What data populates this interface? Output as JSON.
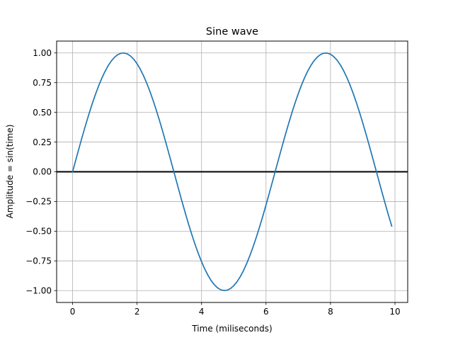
{
  "chart_data": {
    "type": "line",
    "title": "Sine wave",
    "xlabel": "Time (miliseconds)",
    "ylabel": "Amplitude = sin(time)",
    "xlim": [
      -0.495,
      10.395
    ],
    "ylim": [
      -1.1,
      1.1
    ],
    "grid": true,
    "legend": "none",
    "x_ticks": [
      0,
      2,
      4,
      6,
      8,
      10
    ],
    "x_tick_labels": [
      "0",
      "2",
      "4",
      "6",
      "8",
      "10"
    ],
    "y_ticks": [
      -1.0,
      -0.75,
      -0.5,
      -0.25,
      0.0,
      0.25,
      0.5,
      0.75,
      1.0
    ],
    "y_tick_labels": [
      "−1.00",
      "−0.75",
      "−0.50",
      "−0.25",
      "0.00",
      "0.25",
      "0.50",
      "0.75",
      "1.00"
    ],
    "series": [
      {
        "color": "#1f77b4",
        "x": [
          0.0,
          0.1,
          0.2,
          0.3,
          0.4,
          0.5,
          0.6,
          0.7,
          0.8,
          0.9,
          1.0,
          1.1,
          1.2,
          1.3,
          1.4,
          1.5,
          1.6,
          1.7,
          1.8,
          1.9,
          2.0,
          2.1,
          2.2,
          2.3,
          2.4,
          2.5,
          2.6,
          2.7,
          2.8,
          2.9,
          3.0,
          3.1,
          3.2,
          3.3,
          3.4,
          3.5,
          3.6,
          3.7,
          3.8,
          3.9,
          4.0,
          4.1,
          4.2,
          4.3,
          4.4,
          4.5,
          4.6,
          4.7,
          4.8,
          4.9,
          5.0,
          5.1,
          5.2,
          5.3,
          5.4,
          5.5,
          5.6,
          5.7,
          5.8,
          5.9,
          6.0,
          6.1,
          6.2,
          6.3,
          6.4,
          6.5,
          6.6,
          6.7,
          6.8,
          6.9,
          7.0,
          7.1,
          7.2,
          7.3,
          7.4,
          7.5,
          7.6,
          7.7,
          7.8,
          7.9,
          8.0,
          8.1,
          8.2,
          8.3,
          8.4,
          8.5,
          8.6,
          8.7,
          8.8,
          8.9,
          9.0,
          9.1,
          9.2,
          9.3,
          9.4,
          9.5,
          9.6,
          9.7,
          9.8,
          9.9
        ],
        "y": [
          0.0,
          0.0998,
          0.1987,
          0.2955,
          0.3894,
          0.4794,
          0.5646,
          0.6442,
          0.7174,
          0.7833,
          0.8415,
          0.8912,
          0.932,
          0.9636,
          0.9854,
          0.9975,
          0.9996,
          0.9917,
          0.9738,
          0.9463,
          0.9093,
          0.8632,
          0.8085,
          0.7457,
          0.6755,
          0.5985,
          0.5155,
          0.4274,
          0.335,
          0.2392,
          0.1411,
          0.0416,
          -0.0584,
          -0.1577,
          -0.2555,
          -0.3508,
          -0.4425,
          -0.5298,
          -0.6119,
          -0.6878,
          -0.7568,
          -0.8183,
          -0.8716,
          -0.9162,
          -0.9516,
          -0.9775,
          -0.9937,
          -0.9999,
          -0.9962,
          -0.9825,
          -0.9589,
          -0.9258,
          -0.8835,
          -0.8323,
          -0.7728,
          -0.7055,
          -0.6313,
          -0.5507,
          -0.4646,
          -0.3739,
          -0.2794,
          -0.1822,
          -0.0831,
          0.0168,
          0.1165,
          0.2151,
          0.3115,
          0.4048,
          0.4941,
          0.5784,
          0.657,
          0.729,
          0.7937,
          0.8504,
          0.8987,
          0.938,
          0.9679,
          0.9882,
          0.9985,
          0.9989,
          0.9894,
          0.9699,
          0.9407,
          0.9022,
          0.8546,
          0.7985,
          0.7344,
          0.663,
          0.585,
          0.501,
          0.4121,
          0.319,
          0.2229,
          0.1245,
          0.0248,
          -0.0752,
          -0.1743,
          -0.2718,
          -0.3665,
          -0.4575
        ]
      }
    ],
    "reference_line": {
      "y": 0.0,
      "color": "#000000"
    }
  }
}
